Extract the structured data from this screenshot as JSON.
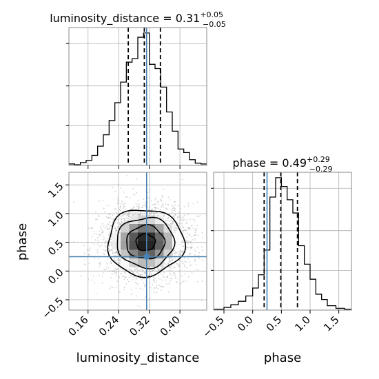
{
  "chart_data": {
    "type": "corner",
    "colors": {
      "hist": "#000000",
      "truth": "#4682b4",
      "grid": "#b0b0b0",
      "scatter": "#9a9a9a"
    },
    "params": [
      {
        "name": "luminosity_distance",
        "axis_label": "luminosity_distance",
        "title_prefix": "luminosity_distance = ",
        "median": "0.31",
        "plus": "+0.05",
        "minus": "−0.05",
        "range": [
          0.11,
          0.47
        ],
        "ticks": [
          0.16,
          0.24,
          0.32,
          0.4
        ],
        "tick_labels": [
          "0.16",
          "0.24",
          "0.32",
          "0.40"
        ],
        "quantiles": [
          0.265,
          0.307,
          0.349
        ],
        "truth": 0.313,
        "bin_edges": [
          0.11,
          0.125,
          0.14,
          0.155,
          0.17,
          0.185,
          0.2,
          0.215,
          0.23,
          0.245,
          0.26,
          0.275,
          0.29,
          0.305,
          0.32,
          0.335,
          0.35,
          0.365,
          0.38,
          0.395,
          0.41,
          0.425,
          0.44,
          0.455,
          0.47
        ],
        "counts": [
          2,
          1,
          4,
          7,
          14,
          27,
          43,
          63,
          88,
          117,
          145,
          150,
          180,
          186,
          142,
          136,
          110,
          75,
          48,
          23,
          18,
          8,
          3,
          2
        ]
      },
      {
        "name": "phase",
        "axis_label": "phase",
        "title_prefix": "phase = ",
        "median": "0.49",
        "plus": "+0.29",
        "minus": "−0.29",
        "range": [
          -0.68,
          1.72
        ],
        "ticks": [
          -0.5,
          0.0,
          0.5,
          1.0,
          1.5
        ],
        "tick_labels": [
          "−0.5",
          "0.0",
          "0.5",
          "1.0",
          "1.5"
        ],
        "quantiles": [
          0.2,
          0.49,
          0.78
        ],
        "truth": 0.25,
        "bin_edges": [
          -0.68,
          -0.5,
          -0.38,
          -0.25,
          -0.12,
          0.0,
          0.1,
          0.2,
          0.3,
          0.4,
          0.5,
          0.6,
          0.7,
          0.8,
          0.9,
          1.0,
          1.1,
          1.2,
          1.3,
          1.45,
          1.6,
          1.72
        ],
        "counts": [
          1,
          3,
          6,
          10,
          16,
          25,
          40,
          68,
          128,
          150,
          140,
          125,
          110,
          73,
          52,
          35,
          18,
          12,
          5,
          2,
          1
        ]
      }
    ],
    "joint": {
      "x_param": "luminosity_distance",
      "y_param": "phase",
      "y_ticks": [
        -0.5,
        0.0,
        0.5,
        1.0,
        1.5
      ],
      "y_tick_labels": [
        "−0.5",
        "0.0",
        "0.5",
        "1.0",
        "1.5"
      ],
      "center": [
        0.31,
        0.5
      ],
      "spread": [
        0.05,
        0.29
      ],
      "contour_levels": [
        0.5,
        1.0,
        1.5,
        2.0
      ]
    }
  }
}
